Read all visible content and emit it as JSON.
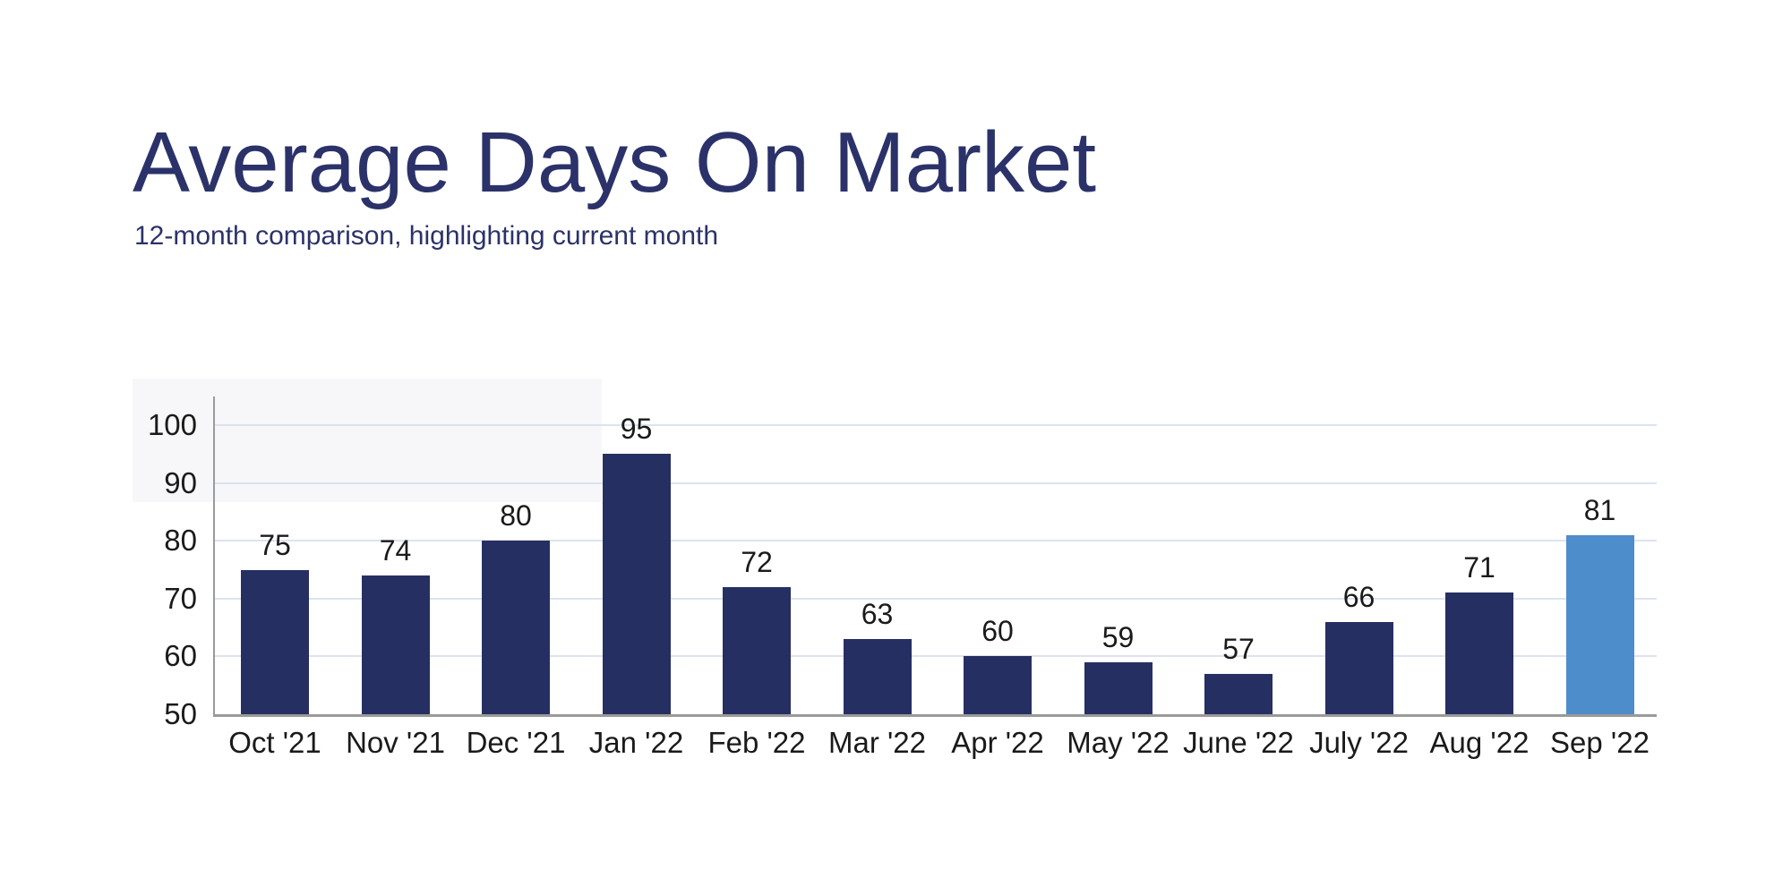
{
  "page": {
    "background": "#FFFFFF"
  },
  "header": {
    "title": "Average Days On Market",
    "subtitle": "12-month comparison, highlighting current month"
  },
  "chart_data": {
    "type": "bar",
    "title": "Average Days On Market",
    "subtitle": "12-month comparison, highlighting current month",
    "categories": [
      "Oct '21",
      "Nov '21",
      "Dec '21",
      "Jan '22",
      "Feb '22",
      "Mar '22",
      "Apr '22",
      "May '22",
      "June '22",
      "July '22",
      "Aug '22",
      "Sep '22"
    ],
    "values": [
      75,
      74,
      80,
      95,
      72,
      63,
      60,
      59,
      57,
      66,
      71,
      81
    ],
    "value_labels": [
      "75",
      "74",
      "80",
      "95",
      "72",
      "63",
      "60",
      "59",
      "57",
      "66",
      "71",
      "81"
    ],
    "highlight_index": 11,
    "highlighted_category": "Sep '22",
    "highlighted_value": 81,
    "y_ticks": [
      50,
      60,
      70,
      80,
      90,
      100
    ],
    "ylim": [
      50,
      105
    ],
    "xlabel": "",
    "ylabel": "",
    "grid": true,
    "legend": "none",
    "bar_value_labels_shown": true,
    "colors": {
      "bar": "#262F62",
      "bar_highlight": "#4E8DCB",
      "grid_line": "#DCE3F0",
      "axis_line": "#9A9A9A",
      "label_text": "#1A1A1A",
      "title_text": "#2B3269",
      "background": "#FFFFFF"
    }
  }
}
